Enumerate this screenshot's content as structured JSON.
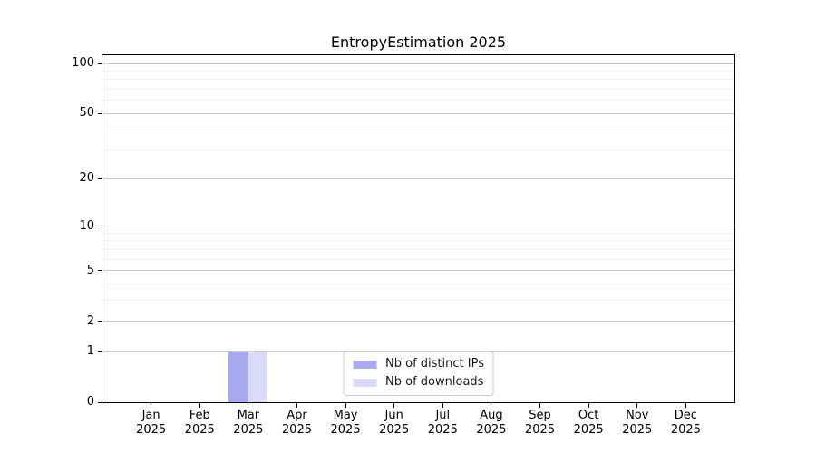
{
  "chart_data": {
    "type": "bar",
    "title": "EntropyEstimation 2025",
    "categories": [
      "Jan",
      "Feb",
      "Mar",
      "Apr",
      "May",
      "Jun",
      "Jul",
      "Aug",
      "Sep",
      "Oct",
      "Nov",
      "Dec"
    ],
    "category_year": "2025",
    "series": [
      {
        "name": "Nb of distinct IPs",
        "color": "#a9a9f3",
        "values": [
          0,
          0,
          1,
          0,
          0,
          0,
          0,
          0,
          0,
          0,
          0,
          0
        ]
      },
      {
        "name": "Nb of downloads",
        "color": "#d9d9fa",
        "values": [
          0,
          0,
          1,
          0,
          0,
          0,
          0,
          0,
          0,
          0,
          0,
          0
        ]
      }
    ],
    "yscale": "log1p",
    "ylim": [
      0,
      112
    ],
    "y_major_ticks": [
      0,
      1,
      2,
      5,
      10,
      20,
      50,
      100
    ],
    "y_minor_ticks": [
      3,
      4,
      6,
      7,
      8,
      9,
      30,
      40,
      60,
      70,
      80,
      90
    ],
    "grid": "horizontal",
    "grid_major_color": "#cdcdcd",
    "grid_minor_color": "#efefef",
    "axis_color": "#000000",
    "bar_width_fraction": 0.4,
    "legend_position": "lower center"
  }
}
